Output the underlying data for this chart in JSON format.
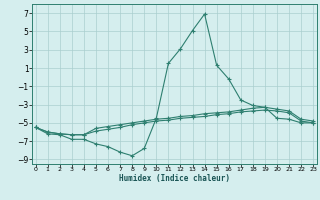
{
  "xlabel": "Humidex (Indice chaleur)",
  "x": [
    0,
    1,
    2,
    3,
    4,
    5,
    6,
    7,
    8,
    9,
    10,
    11,
    12,
    13,
    14,
    15,
    16,
    17,
    18,
    19,
    20,
    21,
    22,
    23
  ],
  "line_top": [
    -5.5,
    -6.2,
    -6.3,
    -6.8,
    -6.8,
    -7.3,
    -7.6,
    -8.2,
    -8.6,
    -7.8,
    -4.5,
    1.5,
    3.1,
    5.1,
    6.9,
    1.3,
    -0.2,
    -2.5,
    -3.1,
    -3.3,
    -4.5,
    -4.6,
    -5.0,
    -5.0
  ],
  "line_mid": [
    -5.5,
    -6.0,
    -6.2,
    -6.3,
    -6.3,
    -5.6,
    -5.4,
    -5.2,
    -5.0,
    -4.8,
    -4.6,
    -4.5,
    -4.3,
    -4.2,
    -4.0,
    -3.9,
    -3.8,
    -3.6,
    -3.4,
    -3.3,
    -3.5,
    -3.7,
    -4.6,
    -4.8
  ],
  "line_bot": [
    -5.5,
    -6.0,
    -6.2,
    -6.3,
    -6.3,
    -5.9,
    -5.7,
    -5.5,
    -5.2,
    -5.0,
    -4.8,
    -4.7,
    -4.5,
    -4.4,
    -4.3,
    -4.1,
    -4.0,
    -3.8,
    -3.7,
    -3.6,
    -3.7,
    -3.9,
    -4.8,
    -5.0
  ],
  "line_color": "#2e7f70",
  "bg_color": "#d5eeee",
  "grid_color": "#aacfcf",
  "ylim": [
    -9.5,
    8.0
  ],
  "yticks": [
    -9,
    -7,
    -5,
    -3,
    -1,
    1,
    3,
    5,
    7
  ],
  "xlim": [
    -0.3,
    23.3
  ],
  "xticks": [
    0,
    1,
    2,
    3,
    4,
    5,
    6,
    7,
    8,
    9,
    10,
    11,
    12,
    13,
    14,
    15,
    16,
    17,
    18,
    19,
    20,
    21,
    22,
    23
  ]
}
